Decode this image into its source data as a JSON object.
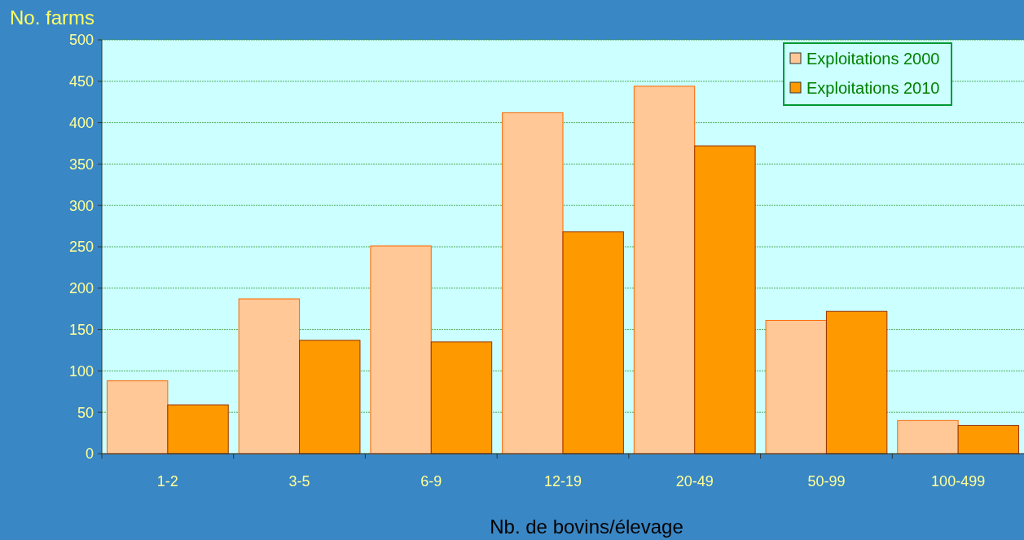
{
  "chart_data": {
    "type": "bar",
    "ylabel": "No. farms",
    "xlabel": "Nb. de bovins/élevage",
    "categories": [
      "1-2",
      "3-5",
      "6-9",
      "12-19",
      "20-49",
      "50-99",
      "100-499"
    ],
    "series": [
      {
        "name": "Exploitations 2000",
        "color": "#ffc896",
        "values": [
          88,
          187,
          251,
          412,
          444,
          161,
          40
        ]
      },
      {
        "name": "Exploitations 2010",
        "color": "#ff9900",
        "values": [
          59,
          137,
          135,
          268,
          372,
          172,
          34
        ]
      }
    ],
    "ylim": [
      0,
      500
    ],
    "yticks": [
      0,
      50,
      100,
      150,
      200,
      250,
      300,
      350,
      400,
      450,
      500
    ],
    "grid": "y",
    "legend": "top right"
  }
}
